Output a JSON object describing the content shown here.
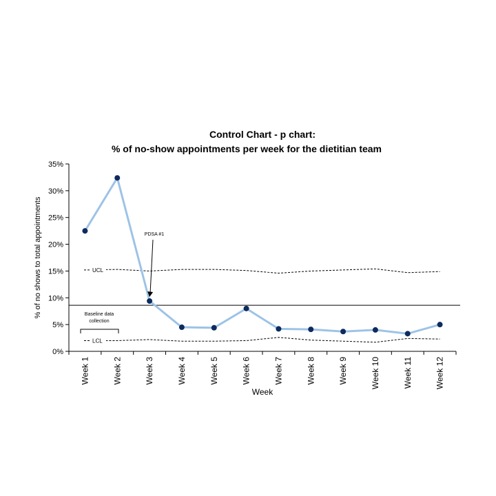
{
  "chart_data": {
    "type": "line",
    "title": [
      "Control Chart - p chart:",
      "% of no-show appointments per week for the dietitian team"
    ],
    "x_label": "Week",
    "y_label": "% of no shows to total appointments",
    "categories": [
      "Week 1",
      "Week 2",
      "Week 3",
      "Week 4",
      "Week 5",
      "Week 6",
      "Week 7",
      "Week 8",
      "Week 9",
      "Week 10",
      "Week 11",
      "Week 12"
    ],
    "series": [
      {
        "color": "#9dc3e6",
        "marker_color": "#0d2b5e",
        "values": [
          22.5,
          32.4,
          9.4,
          4.5,
          4.4,
          8.0,
          4.2,
          4.1,
          3.7,
          4.0,
          3.3,
          5.0
        ]
      },
      {
        "name": "UCL",
        "color": "#000000",
        "dashed": true,
        "values": [
          15.2,
          15.3,
          15.0,
          15.3,
          15.3,
          15.1,
          14.6,
          15.0,
          15.2,
          15.4,
          14.7,
          14.9
        ]
      },
      {
        "name": "LCL",
        "color": "#000000",
        "dashed": true,
        "values": [
          2.0,
          2.0,
          2.2,
          1.9,
          1.9,
          2.0,
          2.6,
          2.1,
          1.9,
          1.7,
          2.4,
          2.3
        ]
      }
    ],
    "center_line": 8.6,
    "ylim": [
      0,
      35
    ],
    "yticks": [
      {
        "value": 0,
        "label": "0%"
      },
      {
        "value": 5,
        "label": "5%"
      },
      {
        "value": 10,
        "label": "10%"
      },
      {
        "value": 15,
        "label": "15%"
      },
      {
        "value": 20,
        "label": "20%"
      },
      {
        "value": 25,
        "label": "25%"
      },
      {
        "value": 30,
        "label": "30%"
      },
      {
        "value": 35,
        "label": "35%"
      }
    ],
    "annotations": [
      "PDSA #1",
      "Baseline data collection"
    ]
  }
}
